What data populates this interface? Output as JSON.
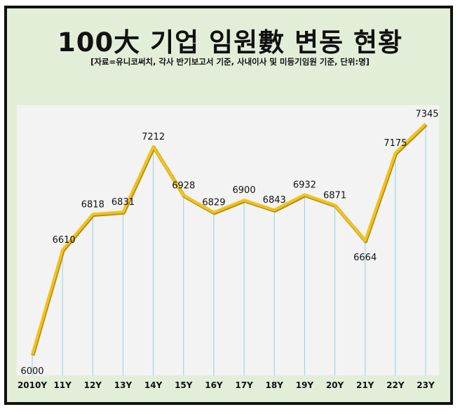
{
  "title": "100大 기업 임원數 변동 현황",
  "subtitle": "[자료=유니코써치, 각사 반기보고서 기준, 사내이사 및 미등기임원 기준, 단위:명]",
  "colors": {
    "frame_bg": "#e3eed9",
    "plot_bg": "#f3f3f3",
    "line": "#f2c21b",
    "line_shadow": "#b08a10",
    "drop_lines": "#8fd3e8",
    "highlight_label": "#d42020"
  },
  "chart_data": {
    "type": "line",
    "categories": [
      "2010Y",
      "11Y",
      "12Y",
      "13Y",
      "14Y",
      "15Y",
      "16Y",
      "17Y",
      "18Y",
      "19Y",
      "20Y",
      "21Y",
      "22Y",
      "23Y"
    ],
    "values": [
      6000,
      6610,
      6818,
      6831,
      7212,
      6928,
      6829,
      6900,
      6843,
      6932,
      6871,
      6664,
      7175,
      7345
    ],
    "value_labels": [
      "6000",
      "6610",
      "6818",
      "6831",
      "7212",
      "6928",
      "6829",
      "6900",
      "6843",
      "6932",
      "6871",
      "6664",
      "7175",
      "7345"
    ],
    "highlighted_point": "23Y",
    "ylim": [
      5600,
      7400
    ],
    "drop_lines": true,
    "grid": false,
    "legend": "none"
  }
}
